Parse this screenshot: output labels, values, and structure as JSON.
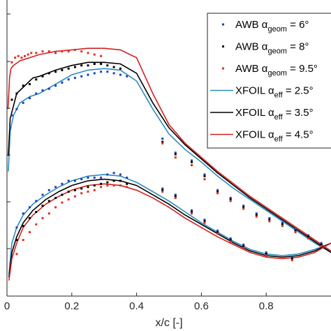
{
  "chart_data": {
    "type": "scatter",
    "title": "",
    "xlabel": "x/c [-]",
    "ylabel": "",
    "xlim": [
      0,
      1.0
    ],
    "ylim": [
      -0.05,
      0.9
    ],
    "x_ticks": [
      0,
      0.2,
      0.4,
      0.6,
      0.8
    ],
    "x_tick_labels": [
      "0",
      "0.2",
      "0.4",
      "0.6",
      "0.8"
    ],
    "grid": false,
    "legend_position": "top-right",
    "legend": [
      {
        "kind": "marker",
        "base": "AWB ",
        "sym": "α",
        "sub": "geom",
        "rest": " = 6°",
        "color": "#1f3fbf"
      },
      {
        "kind": "marker",
        "base": "AWB ",
        "sym": "α",
        "sub": "geom",
        "rest": " = 8°",
        "color": "#000000"
      },
      {
        "kind": "marker",
        "base": "AWB ",
        "sym": "α",
        "sub": "geom",
        "rest": " = 9.5°",
        "color": "#e03020"
      },
      {
        "kind": "line",
        "base": "XFOIL ",
        "sym": "α",
        "sub": "eff",
        "rest": " = 2.5°",
        "color": "#2a8cc0"
      },
      {
        "kind": "line",
        "base": "XFOIL ",
        "sym": "α",
        "sub": "eff",
        "rest": " = 3.5°",
        "color": "#000000"
      },
      {
        "kind": "line",
        "base": "XFOIL ",
        "sym": "α",
        "sub": "eff",
        "rest": " = 4.5°",
        "color": "#d42020"
      }
    ],
    "series": [
      {
        "kind": "line",
        "color": "#2a8cc0",
        "upper": {
          "x": [
            0.004,
            0.01,
            0.02,
            0.04,
            0.07,
            0.1,
            0.15,
            0.2,
            0.25,
            0.3,
            0.35,
            0.4,
            0.45,
            0.5,
            0.55,
            0.6,
            0.65,
            0.7,
            0.75,
            0.8,
            0.85,
            0.9,
            0.95,
            1.0
          ],
          "y": [
            0.35,
            0.48,
            0.53,
            0.57,
            0.59,
            0.6,
            0.63,
            0.66,
            0.675,
            0.68,
            0.675,
            0.64,
            0.55,
            0.47,
            0.42,
            0.38,
            0.335,
            0.295,
            0.26,
            0.225,
            0.19,
            0.155,
            0.12,
            0.09
          ]
        },
        "lower": {
          "x": [
            0.006,
            0.015,
            0.03,
            0.05,
            0.08,
            0.12,
            0.16,
            0.2,
            0.25,
            0.3,
            0.35,
            0.4,
            0.45,
            0.5,
            0.55,
            0.6,
            0.65,
            0.7,
            0.75,
            0.8,
            0.85,
            0.9,
            0.95,
            1.0
          ],
          "y": [
            0.02,
            0.12,
            0.17,
            0.21,
            0.245,
            0.275,
            0.3,
            0.32,
            0.335,
            0.34,
            0.335,
            0.315,
            0.285,
            0.255,
            0.22,
            0.185,
            0.155,
            0.125,
            0.1,
            0.085,
            0.08,
            0.085,
            0.1,
            0.12
          ]
        }
      },
      {
        "kind": "line",
        "color": "#000000",
        "upper": {
          "x": [
            0.004,
            0.01,
            0.02,
            0.03,
            0.05,
            0.08,
            0.1,
            0.15,
            0.2,
            0.25,
            0.3,
            0.35,
            0.4,
            0.45,
            0.5,
            0.55,
            0.6,
            0.65,
            0.7,
            0.75,
            0.8,
            0.85,
            0.9,
            0.95,
            1.0
          ],
          "y": [
            0.4,
            0.52,
            0.56,
            0.6,
            0.62,
            0.65,
            0.655,
            0.675,
            0.69,
            0.7,
            0.7,
            0.695,
            0.665,
            0.57,
            0.49,
            0.435,
            0.39,
            0.345,
            0.305,
            0.265,
            0.23,
            0.195,
            0.16,
            0.125,
            0.09
          ]
        },
        "lower": {
          "x": [
            0.006,
            0.015,
            0.03,
            0.05,
            0.08,
            0.12,
            0.16,
            0.2,
            0.25,
            0.3,
            0.35,
            0.4,
            0.45,
            0.5,
            0.55,
            0.6,
            0.65,
            0.7,
            0.75,
            0.8,
            0.85,
            0.9,
            0.95,
            1.0
          ],
          "y": [
            0.01,
            0.09,
            0.14,
            0.185,
            0.225,
            0.26,
            0.285,
            0.305,
            0.32,
            0.325,
            0.32,
            0.305,
            0.275,
            0.245,
            0.21,
            0.18,
            0.15,
            0.12,
            0.095,
            0.08,
            0.075,
            0.08,
            0.095,
            0.12
          ]
        }
      },
      {
        "kind": "line",
        "color": "#d42020",
        "upper": {
          "x": [
            0.003,
            0.008,
            0.012,
            0.02,
            0.04,
            0.07,
            0.1,
            0.15,
            0.2,
            0.25,
            0.3,
            0.35,
            0.4,
            0.45,
            0.5,
            0.55,
            0.6,
            0.65,
            0.7,
            0.75,
            0.8,
            0.85,
            0.9,
            0.95,
            1.0
          ],
          "y": [
            0.55,
            0.65,
            0.68,
            0.69,
            0.705,
            0.715,
            0.725,
            0.735,
            0.74,
            0.745,
            0.745,
            0.74,
            0.715,
            0.6,
            0.5,
            0.44,
            0.395,
            0.35,
            0.31,
            0.27,
            0.235,
            0.2,
            0.165,
            0.13,
            0.095
          ]
        },
        "lower": {
          "x": [
            0.006,
            0.015,
            0.03,
            0.05,
            0.08,
            0.12,
            0.16,
            0.2,
            0.25,
            0.3,
            0.35,
            0.4,
            0.45,
            0.5,
            0.55,
            0.6,
            0.65,
            0.7,
            0.75,
            0.8,
            0.85,
            0.9,
            0.95,
            1.0
          ],
          "y": [
            0.0,
            0.07,
            0.12,
            0.17,
            0.21,
            0.245,
            0.27,
            0.29,
            0.305,
            0.31,
            0.305,
            0.29,
            0.265,
            0.235,
            0.2,
            0.17,
            0.14,
            0.115,
            0.09,
            0.075,
            0.07,
            0.075,
            0.09,
            0.12
          ]
        }
      },
      {
        "kind": "marker",
        "color": "#1f3fbf",
        "x": [
          0.01,
          0.015,
          0.03,
          0.05,
          0.07,
          0.09,
          0.11,
          0.13,
          0.15,
          0.17,
          0.19,
          0.21,
          0.23,
          0.25,
          0.27,
          0.29,
          0.31,
          0.33,
          0.35,
          0.37,
          0.48,
          0.52,
          0.57,
          0.61,
          0.65,
          0.69,
          0.73,
          0.77,
          0.81,
          0.85,
          0.89,
          0.93,
          0.97,
          0.03,
          0.05,
          0.07,
          0.09,
          0.11,
          0.13,
          0.15,
          0.17,
          0.19,
          0.21,
          0.23,
          0.25,
          0.27,
          0.29,
          0.31,
          0.33,
          0.35,
          0.37,
          0.48,
          0.52,
          0.57,
          0.61,
          0.65,
          0.69,
          0.73,
          0.8,
          0.88
        ],
        "y": [
          0.49,
          0.53,
          0.55,
          0.57,
          0.585,
          0.6,
          0.61,
          0.615,
          0.625,
          0.635,
          0.645,
          0.65,
          0.655,
          0.66,
          0.665,
          0.67,
          0.67,
          0.665,
          0.66,
          0.655,
          0.455,
          0.41,
          0.385,
          0.34,
          0.29,
          0.265,
          0.24,
          0.215,
          0.2,
          0.185,
          0.165,
          0.145,
          0.12,
          0.17,
          0.215,
          0.235,
          0.255,
          0.275,
          0.29,
          0.3,
          0.31,
          0.32,
          0.32,
          0.325,
          0.33,
          0.33,
          0.33,
          0.34,
          0.345,
          0.34,
          0.33,
          0.295,
          0.275,
          0.225,
          0.195,
          0.16,
          0.135,
          0.115,
          0.09,
          0.075
        ]
      },
      {
        "kind": "marker",
        "color": "#000000",
        "x": [
          0.015,
          0.03,
          0.05,
          0.07,
          0.09,
          0.11,
          0.13,
          0.15,
          0.17,
          0.19,
          0.21,
          0.23,
          0.25,
          0.27,
          0.29,
          0.31,
          0.33,
          0.35,
          0.48,
          0.52,
          0.57,
          0.61,
          0.65,
          0.69,
          0.73,
          0.77,
          0.81,
          0.85,
          0.89,
          0.93,
          0.97,
          0.03,
          0.05,
          0.07,
          0.09,
          0.11,
          0.13,
          0.15,
          0.17,
          0.19,
          0.21,
          0.23,
          0.25,
          0.27,
          0.29,
          0.31,
          0.33,
          0.35,
          0.37,
          0.48,
          0.52,
          0.57,
          0.61,
          0.65,
          0.69,
          0.73,
          0.8,
          0.88
        ],
        "y": [
          0.58,
          0.6,
          0.625,
          0.63,
          0.645,
          0.655,
          0.665,
          0.67,
          0.675,
          0.68,
          0.685,
          0.69,
          0.69,
          0.695,
          0.695,
          0.69,
          0.685,
          0.68,
          0.445,
          0.405,
          0.38,
          0.335,
          0.285,
          0.26,
          0.235,
          0.21,
          0.195,
          0.18,
          0.16,
          0.14,
          0.115,
          0.13,
          0.175,
          0.2,
          0.22,
          0.24,
          0.255,
          0.265,
          0.275,
          0.285,
          0.29,
          0.295,
          0.3,
          0.305,
          0.31,
          0.315,
          0.32,
          0.32,
          0.31,
          0.29,
          0.27,
          0.22,
          0.19,
          0.155,
          0.13,
          0.11,
          0.085,
          0.07
        ]
      },
      {
        "kind": "marker",
        "color": "#e03020",
        "x": [
          0.015,
          0.025,
          0.035,
          0.045,
          0.055,
          0.065,
          0.075,
          0.09,
          0.11,
          0.13,
          0.15,
          0.17,
          0.19,
          0.21,
          0.23,
          0.25,
          0.27,
          0.29,
          0.48,
          0.52,
          0.57,
          0.61,
          0.65,
          0.69,
          0.73,
          0.77,
          0.81,
          0.85,
          0.89,
          0.93,
          0.97,
          0.03,
          0.05,
          0.07,
          0.09,
          0.11,
          0.13,
          0.15,
          0.17,
          0.19,
          0.21,
          0.23,
          0.25,
          0.27,
          0.29,
          0.31,
          0.33,
          0.35,
          0.37,
          0.48,
          0.52,
          0.57,
          0.61,
          0.65,
          0.69,
          0.73,
          0.8,
          0.88
        ],
        "y": [
          0.7,
          0.715,
          0.72,
          0.715,
          0.72,
          0.725,
          0.73,
          0.73,
          0.735,
          0.735,
          0.73,
          0.735,
          0.735,
          0.74,
          0.735,
          0.73,
          0.725,
          0.72,
          0.44,
          0.395,
          0.37,
          0.325,
          0.28,
          0.255,
          0.23,
          0.205,
          0.19,
          0.175,
          0.155,
          0.135,
          0.11,
          0.085,
          0.13,
          0.155,
          0.18,
          0.2,
          0.215,
          0.235,
          0.25,
          0.26,
          0.27,
          0.28,
          0.285,
          0.29,
          0.3,
          0.305,
          0.305,
          0.305,
          0.3,
          0.285,
          0.265,
          0.215,
          0.185,
          0.15,
          0.125,
          0.105,
          0.08,
          0.065
        ]
      }
    ]
  }
}
